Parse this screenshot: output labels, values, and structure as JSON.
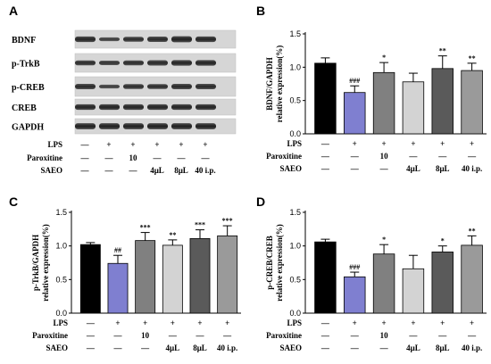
{
  "panels": {
    "a": {
      "letter": "A"
    },
    "b": {
      "letter": "B"
    },
    "c": {
      "letter": "C"
    },
    "d": {
      "letter": "D"
    }
  },
  "blot": {
    "rows": [
      "BDNF",
      "p-TrkB",
      "p-CREB",
      "CREB",
      "GAPDH"
    ]
  },
  "conditions": {
    "labels": [
      "LPS",
      "Paroxitine",
      "SAEO"
    ],
    "values": [
      [
        "—",
        "+",
        "+",
        "+",
        "+",
        "+"
      ],
      [
        "—",
        "—",
        "10",
        "—",
        "—",
        "—"
      ],
      [
        "—",
        "—",
        "—",
        "4μL",
        "8μL",
        "40 i.p."
      ]
    ]
  },
  "colors": {
    "bars": [
      "#000000",
      "#7f7fd0",
      "#808080",
      "#d3d3d3",
      "#5a5a5a",
      "#9a9a9a"
    ]
  },
  "chart_data": [
    {
      "id": "b",
      "type": "bar",
      "ylabel_line1": "BDNF/GAPDH",
      "ylabel_line2": "relative expression(%)",
      "ylim": [
        0,
        1.5
      ],
      "yticks": [
        "0.0",
        "0.5",
        "1.0",
        "1.5"
      ],
      "values": [
        1.06,
        0.62,
        0.92,
        0.78,
        0.98,
        0.95
      ],
      "errors": [
        0.08,
        0.1,
        0.15,
        0.13,
        0.19,
        0.11
      ],
      "sig": [
        "",
        "###",
        "*",
        "",
        "**",
        "**"
      ]
    },
    {
      "id": "c",
      "type": "bar",
      "ylabel_line1": "p-TrkB/GAPDH",
      "ylabel_line2": "relative expression(%)",
      "ylim": [
        0,
        1.5
      ],
      "yticks": [
        "0.0",
        "0.5",
        "1.0",
        "1.5"
      ],
      "values": [
        1.02,
        0.74,
        1.08,
        1.01,
        1.11,
        1.15
      ],
      "errors": [
        0.03,
        0.12,
        0.12,
        0.08,
        0.13,
        0.15
      ],
      "sig": [
        "",
        "##",
        "***",
        "**",
        "***",
        "***"
      ]
    },
    {
      "id": "d",
      "type": "bar",
      "ylabel_line1": "p-CREB/CREB",
      "ylabel_line2": "relative expression(%)",
      "ylim": [
        0,
        1.5
      ],
      "yticks": [
        "0.0",
        "0.5",
        "1.0",
        "1.5"
      ],
      "values": [
        1.06,
        0.54,
        0.88,
        0.66,
        0.91,
        1.01
      ],
      "errors": [
        0.04,
        0.07,
        0.14,
        0.2,
        0.09,
        0.14
      ],
      "sig": [
        "",
        "###",
        "*",
        "",
        "*",
        "**"
      ]
    }
  ]
}
